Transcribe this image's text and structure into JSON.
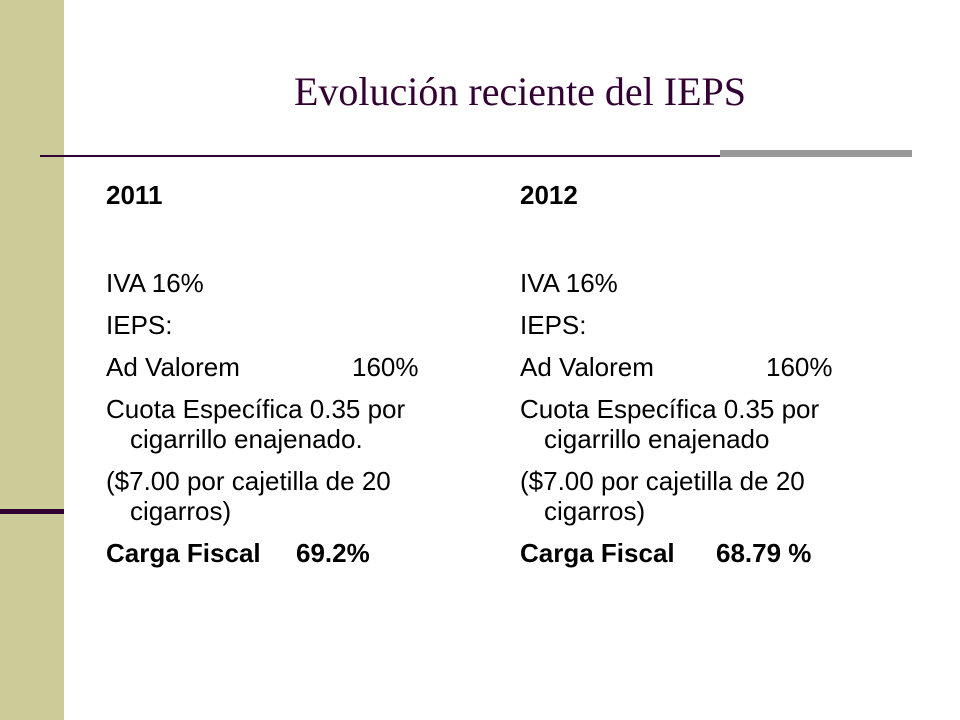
{
  "slide": {
    "title": "Evolución reciente del IEPS"
  },
  "columns": [
    {
      "year": "2011",
      "iva": "IVA 16%",
      "ieps": "IEPS:",
      "ad_valorem_label": "Ad Valorem",
      "ad_valorem_value": "160%",
      "cuota_line1": "Cuota Específica 0.35 por",
      "cuota_line2": "cigarrillo enajenado.",
      "cajetilla_line1": "($7.00 por cajetilla de 20",
      "cajetilla_line2": "cigarros)",
      "carga_label": "Carga Fiscal",
      "carga_value": "69.2%"
    },
    {
      "year": "2012",
      "iva": "IVA 16%",
      "ieps": "IEPS:",
      "ad_valorem_label": "Ad Valorem",
      "ad_valorem_value": "160%",
      "cuota_line1": "Cuota Específica 0.35 por",
      "cuota_line2": "cigarrillo enajenado",
      "cajetilla_line1": "($7.00 por cajetilla de 20",
      "cajetilla_line2": "cigarros)",
      "carga_label": "Carga Fiscal",
      "carga_value": "68.79 %"
    }
  ],
  "colors": {
    "sidebar": "#cccc99",
    "title": "#330033",
    "rule_accent": "#999999"
  }
}
